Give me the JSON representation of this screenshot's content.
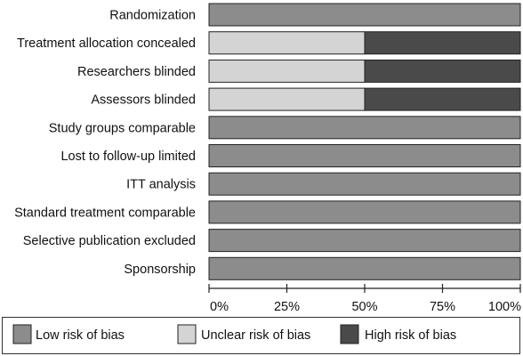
{
  "chart_data": {
    "type": "bar",
    "stacked": true,
    "orientation": "horizontal",
    "categories": [
      "Randomization",
      "Treatment allocation concealed",
      "Researchers blinded",
      "Assessors blinded",
      "Study groups comparable",
      "Lost to follow-up limited",
      "ITT analysis",
      "Standard treatment comparable",
      "Selective publication excluded",
      "Sponsorship"
    ],
    "series": [
      {
        "name": "Low risk of bias",
        "color": "#8c8c8c",
        "values": [
          100,
          0,
          0,
          0,
          100,
          100,
          100,
          100,
          100,
          100
        ]
      },
      {
        "name": "Unclear risk of bias",
        "color": "#d4d4d4",
        "values": [
          0,
          50,
          50,
          50,
          0,
          0,
          0,
          0,
          0,
          0
        ]
      },
      {
        "name": "High risk of bias",
        "color": "#4a4a4a",
        "values": [
          0,
          50,
          50,
          50,
          0,
          0,
          0,
          0,
          0,
          0
        ]
      }
    ],
    "xlim": [
      0,
      100
    ],
    "x_ticks": [
      "0%",
      "25%",
      "50%",
      "75%",
      "100%"
    ],
    "x_tick_values": [
      0,
      25,
      50,
      75,
      100
    ],
    "grid": false,
    "legend_position": "bottom"
  }
}
